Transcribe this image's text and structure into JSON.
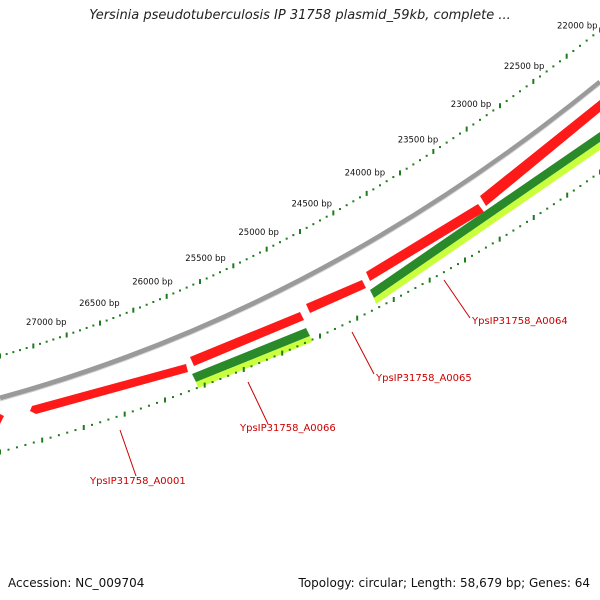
{
  "title": "Yersinia pseudotuberculosis IP 31758 plasmid_59kb, complete ...",
  "footer": {
    "accession": "Accession: NC_009704",
    "summary": "Topology: circular; Length: 58,679 bp; Genes: 64"
  },
  "colors": {
    "backbone": "#8a8a8a",
    "forward_gene": "#ff0000",
    "reverse_gene_dark": "#228b22",
    "reverse_gene_light": "#c6ff3a",
    "tick": "#1e7b1e",
    "label": "#cc0000"
  },
  "scale_labels": [
    {
      "bp": 22000,
      "text": "22000 bp"
    },
    {
      "bp": 22500,
      "text": "22500 bp"
    },
    {
      "bp": 23000,
      "text": "23000 bp"
    },
    {
      "bp": 23500,
      "text": "23500 bp"
    },
    {
      "bp": 24000,
      "text": "24000 bp"
    },
    {
      "bp": 24500,
      "text": "24500 bp"
    },
    {
      "bp": 25000,
      "text": "25000 bp"
    },
    {
      "bp": 25500,
      "text": "25500 bp"
    },
    {
      "bp": 26000,
      "text": "26000 bp"
    },
    {
      "bp": 26500,
      "text": "26500 bp"
    },
    {
      "bp": 27000,
      "text": "27000 bp"
    }
  ],
  "gene_labels": [
    {
      "id": "gene-a0064",
      "text": "YpsIP31758_A0064"
    },
    {
      "id": "gene-a0065",
      "text": "YpsIP31758_A0065"
    },
    {
      "id": "gene-a0066",
      "text": "YpsIP31758_A0066"
    },
    {
      "id": "gene-a0001",
      "text": "YpsIP31758_A0001"
    }
  ]
}
